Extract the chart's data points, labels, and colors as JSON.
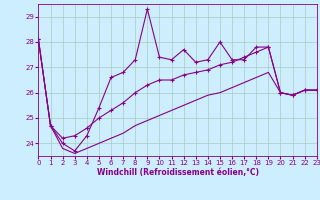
{
  "xlabel": "Windchill (Refroidissement éolien,°C)",
  "background_color": "#cceeff",
  "grid_color": "#aaccbb",
  "line_color": "#880088",
  "xlim": [
    0,
    23
  ],
  "ylim": [
    23.5,
    29.5
  ],
  "yticks": [
    24,
    25,
    26,
    27,
    28,
    29
  ],
  "xticks": [
    0,
    1,
    2,
    3,
    4,
    5,
    6,
    7,
    8,
    9,
    10,
    11,
    12,
    13,
    14,
    15,
    16,
    17,
    18,
    19,
    20,
    21,
    22,
    23
  ],
  "series": [
    {
      "x": [
        0,
        1,
        2,
        3,
        4,
        5,
        6,
        7,
        8,
        9,
        10,
        11,
        12,
        13,
        14,
        15,
        16,
        17,
        18,
        19,
        20,
        21,
        22,
        23
      ],
      "y": [
        28.1,
        24.7,
        24.0,
        23.7,
        24.3,
        25.4,
        26.6,
        26.8,
        27.3,
        29.3,
        27.4,
        27.3,
        27.7,
        27.2,
        27.3,
        28.0,
        27.3,
        27.3,
        27.8,
        27.8,
        26.0,
        25.9,
        26.1,
        26.1
      ],
      "marker": "+"
    },
    {
      "x": [
        0,
        1,
        2,
        3,
        4,
        5,
        6,
        7,
        8,
        9,
        10,
        11,
        12,
        13,
        14,
        15,
        16,
        17,
        18,
        19,
        20,
        21,
        22,
        23
      ],
      "y": [
        28.1,
        24.7,
        24.2,
        24.3,
        24.6,
        25.0,
        25.3,
        25.6,
        26.0,
        26.3,
        26.5,
        26.5,
        26.7,
        26.8,
        26.9,
        27.1,
        27.2,
        27.4,
        27.6,
        27.8,
        26.0,
        25.9,
        26.1,
        26.1
      ],
      "marker": "+"
    },
    {
      "x": [
        0,
        1,
        2,
        3,
        4,
        5,
        6,
        7,
        8,
        9,
        10,
        11,
        12,
        13,
        14,
        15,
        16,
        17,
        18,
        19,
        20,
        21,
        22,
        23
      ],
      "y": [
        28.1,
        24.7,
        23.8,
        23.6,
        23.8,
        24.0,
        24.2,
        24.4,
        24.7,
        24.9,
        25.1,
        25.3,
        25.5,
        25.7,
        25.9,
        26.0,
        26.2,
        26.4,
        26.6,
        26.8,
        26.0,
        25.9,
        26.1,
        26.1
      ],
      "marker": null
    }
  ]
}
